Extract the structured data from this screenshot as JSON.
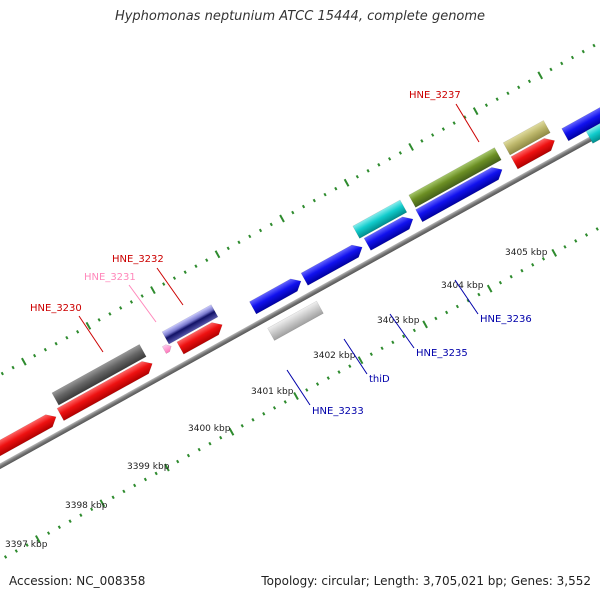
{
  "title": "Hyphomonas neptunium ATCC 15444, complete genome",
  "footer": {
    "accession": "Accession: NC_008358",
    "topology": "Topology: circular; Length: 3,705,021 bp; Genes: 3,552"
  },
  "colors": {
    "backbone": "#888888",
    "ruler": "#2e8b2e",
    "red_gene": "#ee1111",
    "blue_gene": "#1111ee",
    "cyan_gene": "#11cccc",
    "olive_gene": "#6b8e23",
    "khaki_gene": "#bdb76b",
    "gray_gene": "#666666",
    "lightgray_gene": "#cccccc",
    "slate_gene": "#7777cc",
    "pink_gene": "#ff99cc",
    "label_red": "#cc0000",
    "label_blue": "#0000aa",
    "label_pink": "#ff88bb"
  },
  "ruler_labels": [
    "3397 kbp",
    "3398 kbp",
    "3399 kbp",
    "3400 kbp",
    "3401 kbp",
    "3402 kbp",
    "3403 kbp",
    "3404 kbp",
    "3405 kbp"
  ],
  "gene_labels": [
    {
      "text": "HNE_3230",
      "color": "red"
    },
    {
      "text": "HNE_3231",
      "color": "pink"
    },
    {
      "text": "HNE_3232",
      "color": "red"
    },
    {
      "text": "HNE_3233",
      "color": "blue"
    },
    {
      "text": "thiD",
      "color": "blue"
    },
    {
      "text": "HNE_3235",
      "color": "blue"
    },
    {
      "text": "HNE_3236",
      "color": "blue"
    },
    {
      "text": "HNE_3237",
      "color": "red"
    }
  ]
}
